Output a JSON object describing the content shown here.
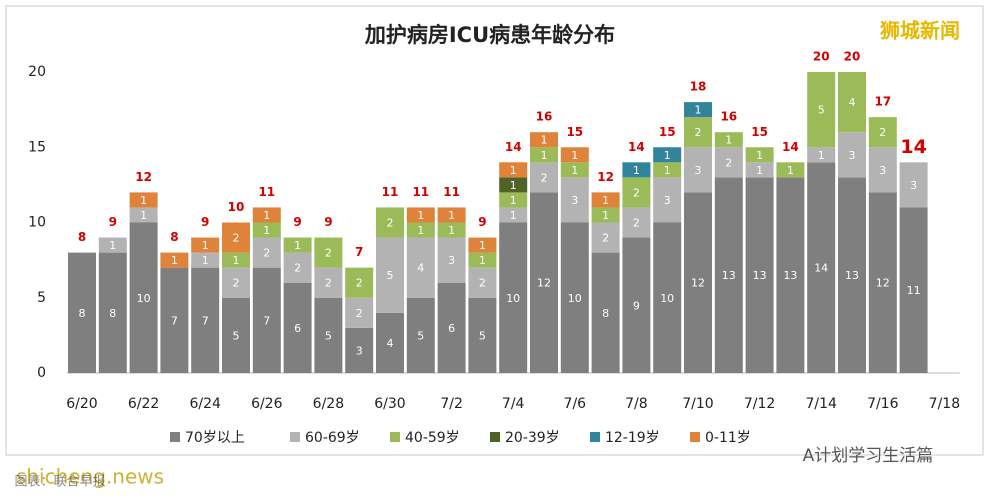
{
  "chart_data": {
    "type": "stacked_bar",
    "title": "加护病房ICU病患年龄分布",
    "categories": [
      "6/20",
      null,
      "6/22",
      null,
      "6/24",
      null,
      "6/26",
      null,
      "6/28",
      null,
      "6/30",
      null,
      "7/2",
      null,
      "7/4",
      null,
      "7/6",
      null,
      "7/8",
      null,
      "7/10",
      null,
      "7/12",
      null,
      "7/14",
      null,
      "7/16",
      null,
      "7/18"
    ],
    "series": [
      {
        "name": "70岁以上",
        "color": "#7f7f7f",
        "values": [
          8,
          8,
          10,
          7,
          7,
          5,
          7,
          6,
          5,
          3,
          4,
          5,
          6,
          5,
          10,
          12,
          10,
          8,
          9,
          10,
          12,
          13,
          13,
          13,
          14,
          13,
          12,
          11,
          null
        ]
      },
      {
        "name": "60-69岁",
        "color": "#b3b3b3",
        "values": [
          0,
          1,
          1,
          0,
          1,
          2,
          2,
          2,
          2,
          2,
          5,
          4,
          3,
          2,
          1,
          2,
          3,
          2,
          2,
          3,
          3,
          2,
          1,
          0,
          1,
          3,
          3,
          3,
          null
        ]
      },
      {
        "name": "40-59岁",
        "color": "#9bbb59",
        "values": [
          0,
          0,
          0,
          0,
          0,
          1,
          1,
          1,
          2,
          2,
          2,
          1,
          1,
          1,
          1,
          1,
          1,
          1,
          2,
          1,
          2,
          1,
          1,
          1,
          5,
          4,
          2,
          0,
          null
        ]
      },
      {
        "name": "20-39岁",
        "color": "#4f6228",
        "values": [
          0,
          0,
          0,
          0,
          0,
          0,
          0,
          0,
          0,
          0,
          0,
          0,
          0,
          0,
          1,
          0,
          0,
          0,
          0,
          0,
          0,
          0,
          0,
          0,
          0,
          0,
          0,
          0,
          null
        ]
      },
      {
        "name": "12-19岁",
        "color": "#31849b",
        "values": [
          0,
          0,
          0,
          0,
          0,
          0,
          0,
          0,
          0,
          0,
          0,
          0,
          0,
          0,
          0,
          0,
          0,
          0,
          1,
          1,
          1,
          0,
          0,
          0,
          0,
          0,
          0,
          0,
          null
        ]
      },
      {
        "name": "0-11岁",
        "color": "#e0833a",
        "values": [
          0,
          0,
          1,
          1,
          1,
          2,
          1,
          0,
          0,
          0,
          0,
          1,
          1,
          1,
          1,
          1,
          1,
          1,
          0,
          0,
          0,
          0,
          0,
          0,
          0,
          0,
          0,
          0,
          null
        ]
      }
    ],
    "totals": [
      8,
      9,
      12,
      8,
      9,
      10,
      11,
      9,
      9,
      7,
      11,
      11,
      11,
      9,
      14,
      16,
      15,
      12,
      14,
      15,
      18,
      16,
      15,
      14,
      20,
      20,
      17,
      14,
      null
    ],
    "ylim": [
      0,
      20
    ],
    "yticks": [
      0,
      5,
      10,
      15,
      20
    ],
    "grid": false,
    "legend": "bottom",
    "watermarks": [
      "狮城新闻",
      "A计划学习生活篇",
      "shicheng.news",
      "图表：联合早报"
    ]
  }
}
